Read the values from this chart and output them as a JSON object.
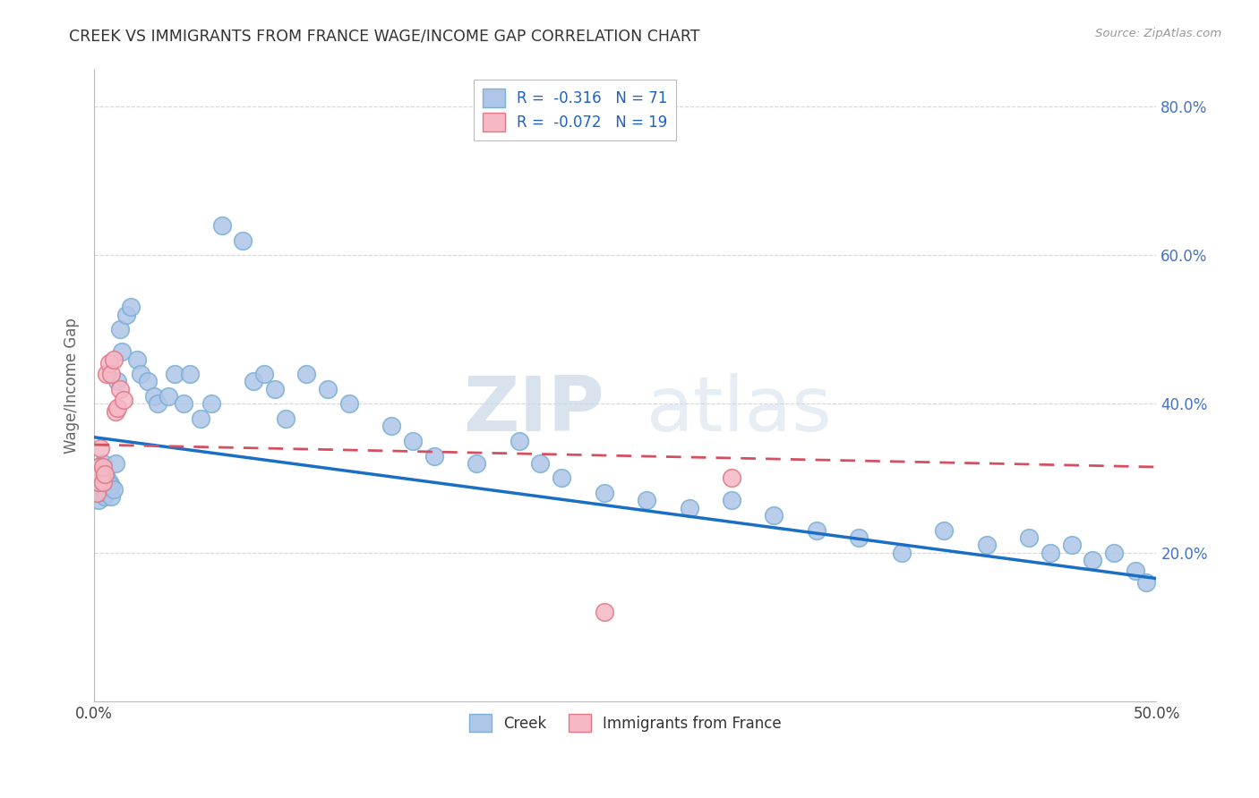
{
  "title": "CREEK VS IMMIGRANTS FROM FRANCE WAGE/INCOME GAP CORRELATION CHART",
  "source": "Source: ZipAtlas.com",
  "ylabel": "Wage/Income Gap",
  "x_min": 0.0,
  "x_max": 0.5,
  "y_min": 0.0,
  "y_max": 0.85,
  "y_ticks": [
    0.2,
    0.4,
    0.6,
    0.8
  ],
  "y_tick_labels": [
    "20.0%",
    "40.0%",
    "60.0%",
    "80.0%"
  ],
  "creek_color": "#aec6e8",
  "creek_edge_color": "#7bafd4",
  "france_color": "#f5b8c4",
  "france_edge_color": "#e07888",
  "trend_creek_color": "#1a6fc4",
  "trend_france_color": "#d45060",
  "legend_creek_label": "R =  -0.316   N = 71",
  "legend_france_label": "R =  -0.072   N = 19",
  "bottom_creek_label": "Creek",
  "bottom_france_label": "Immigrants from France",
  "watermark_zip": "ZIP",
  "watermark_atlas": "atlas",
  "creek_intercept": 0.355,
  "creek_slope": -0.38,
  "france_intercept": 0.345,
  "france_slope": -0.06,
  "creek_x": [
    0.001,
    0.001,
    0.001,
    0.002,
    0.002,
    0.002,
    0.003,
    0.003,
    0.003,
    0.004,
    0.004,
    0.004,
    0.005,
    0.005,
    0.006,
    0.006,
    0.007,
    0.007,
    0.008,
    0.008,
    0.009,
    0.01,
    0.011,
    0.012,
    0.013,
    0.015,
    0.017,
    0.02,
    0.022,
    0.025,
    0.028,
    0.03,
    0.035,
    0.038,
    0.042,
    0.045,
    0.05,
    0.055,
    0.06,
    0.07,
    0.075,
    0.08,
    0.085,
    0.09,
    0.1,
    0.11,
    0.12,
    0.14,
    0.15,
    0.16,
    0.18,
    0.2,
    0.21,
    0.22,
    0.24,
    0.26,
    0.28,
    0.3,
    0.32,
    0.34,
    0.36,
    0.38,
    0.4,
    0.42,
    0.44,
    0.45,
    0.46,
    0.47,
    0.48,
    0.49,
    0.495
  ],
  "creek_y": [
    0.285,
    0.295,
    0.305,
    0.27,
    0.3,
    0.315,
    0.28,
    0.295,
    0.31,
    0.285,
    0.3,
    0.32,
    0.275,
    0.295,
    0.28,
    0.3,
    0.285,
    0.295,
    0.275,
    0.29,
    0.285,
    0.32,
    0.43,
    0.5,
    0.47,
    0.52,
    0.53,
    0.46,
    0.44,
    0.43,
    0.41,
    0.4,
    0.41,
    0.44,
    0.4,
    0.44,
    0.38,
    0.4,
    0.64,
    0.62,
    0.43,
    0.44,
    0.42,
    0.38,
    0.44,
    0.42,
    0.4,
    0.37,
    0.35,
    0.33,
    0.32,
    0.35,
    0.32,
    0.3,
    0.28,
    0.27,
    0.26,
    0.27,
    0.25,
    0.23,
    0.22,
    0.2,
    0.23,
    0.21,
    0.22,
    0.2,
    0.21,
    0.19,
    0.2,
    0.175,
    0.16
  ],
  "france_x": [
    0.001,
    0.001,
    0.002,
    0.002,
    0.003,
    0.003,
    0.004,
    0.004,
    0.005,
    0.006,
    0.007,
    0.008,
    0.009,
    0.01,
    0.011,
    0.012,
    0.014,
    0.24,
    0.3
  ],
  "france_y": [
    0.28,
    0.3,
    0.295,
    0.315,
    0.305,
    0.34,
    0.295,
    0.315,
    0.305,
    0.44,
    0.455,
    0.44,
    0.46,
    0.39,
    0.395,
    0.42,
    0.405,
    0.12,
    0.3
  ]
}
